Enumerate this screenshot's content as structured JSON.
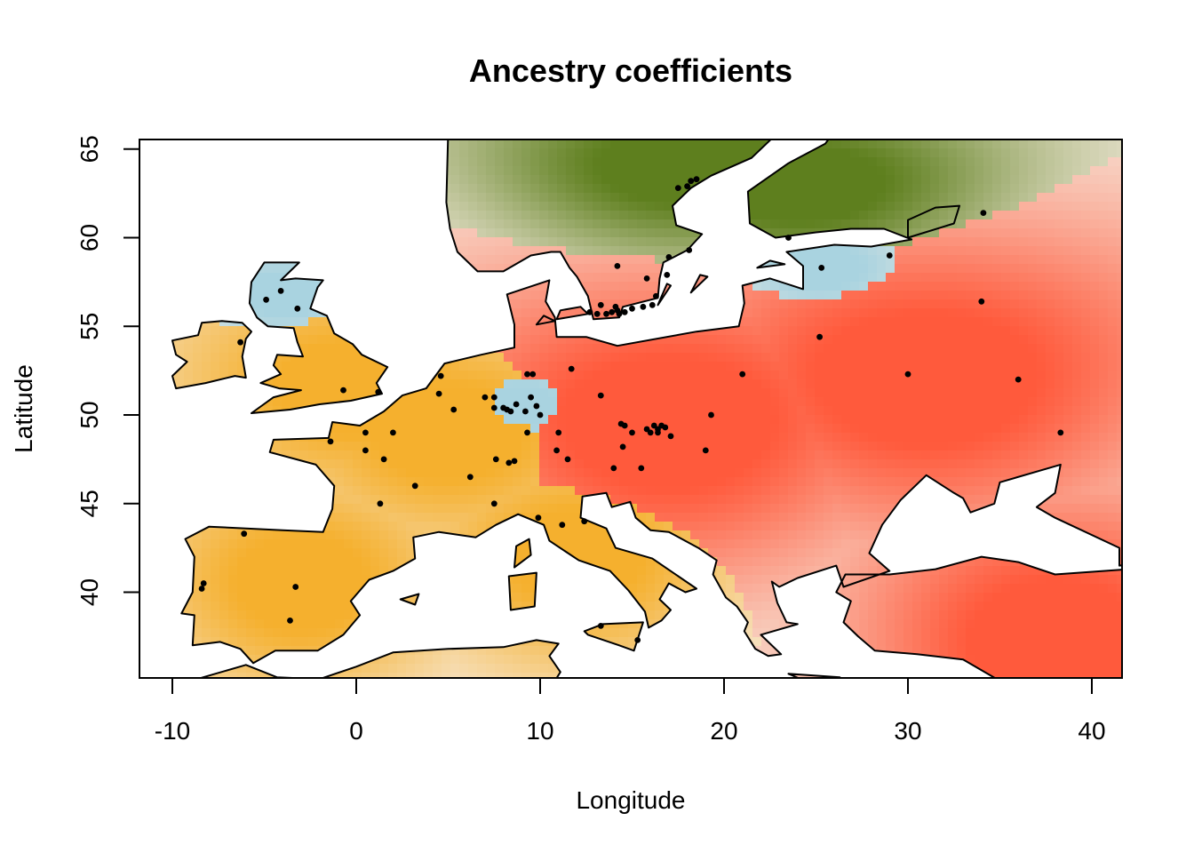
{
  "chart_data": {
    "type": "heatmap",
    "title": "Ancestry coefficients",
    "xlabel": "Longitude",
    "ylabel": "Latitude",
    "xlim": [
      -11.7,
      41.7
    ],
    "ylim": [
      35,
      65.5
    ],
    "xticks": [
      -10,
      0,
      10,
      20,
      30,
      40
    ],
    "yticks": [
      40,
      45,
      50,
      55,
      60,
      65
    ],
    "colors": {
      "orange_cluster": "#f5b02e",
      "red_cluster": "#ff5a3c",
      "blue_cluster": "#a9d3e0",
      "green_cluster": "#5e7f1e",
      "mixed": "#f6ece0",
      "sea": "#ffffff",
      "points": "#000000"
    },
    "clusters": [
      {
        "color": "orange",
        "centers": [
          [
            0,
            51.5
          ],
          [
            5,
            49
          ],
          [
            -3,
            40.5
          ],
          [
            12,
            42
          ]
        ]
      },
      {
        "color": "red",
        "centers": [
          [
            17,
            49.5
          ],
          [
            31,
            52
          ],
          [
            38,
            37
          ]
        ]
      },
      {
        "color": "blue",
        "centers": [
          [
            9,
            50.5
          ],
          [
            -4,
            56.8
          ],
          [
            25.3,
            58.3
          ]
        ]
      },
      {
        "color": "green",
        "centers": [
          [
            18,
            64
          ],
          [
            24,
            63
          ]
        ]
      }
    ],
    "points": [
      [
        -8.4,
        40.2
      ],
      [
        -8.3,
        40.5
      ],
      [
        -6.1,
        43.3
      ],
      [
        -3.3,
        40.3
      ],
      [
        -3.6,
        38.4
      ],
      [
        -6.3,
        54.1
      ],
      [
        -4.1,
        57.0
      ],
      [
        -4.9,
        56.5
      ],
      [
        -3.2,
        56.0
      ],
      [
        -0.7,
        51.4
      ],
      [
        1.2,
        51.3
      ],
      [
        -1.4,
        48.5
      ],
      [
        0.5,
        49.0
      ],
      [
        0.5,
        48.0
      ],
      [
        2.0,
        49.0
      ],
      [
        1.5,
        47.5
      ],
      [
        1.3,
        45.0
      ],
      [
        3.2,
        46.0
      ],
      [
        5.3,
        50.3
      ],
      [
        4.5,
        51.2
      ],
      [
        4.6,
        52.2
      ],
      [
        6.2,
        46.5
      ],
      [
        7.0,
        51.0
      ],
      [
        7.5,
        51.0
      ],
      [
        7.5,
        50.4
      ],
      [
        7.6,
        47.5
      ],
      [
        7.5,
        45.0
      ],
      [
        8.0,
        50.4
      ],
      [
        8.2,
        50.3
      ],
      [
        8.4,
        50.2
      ],
      [
        8.7,
        50.6
      ],
      [
        8.3,
        47.3
      ],
      [
        8.6,
        47.4
      ],
      [
        9.3,
        52.3
      ],
      [
        9.6,
        52.3
      ],
      [
        9.5,
        51.0
      ],
      [
        9.2,
        50.2
      ],
      [
        9.8,
        50.5
      ],
      [
        10.0,
        50.0
      ],
      [
        9.3,
        49.0
      ],
      [
        9.9,
        44.2
      ],
      [
        11.0,
        49.0
      ],
      [
        10.9,
        48.0
      ],
      [
        11.5,
        47.5
      ],
      [
        11.7,
        52.6
      ],
      [
        11.2,
        43.8
      ],
      [
        12.4,
        44.0
      ],
      [
        13.3,
        51.1
      ],
      [
        13.3,
        38.1
      ],
      [
        14.2,
        58.4
      ],
      [
        14.4,
        49.5
      ],
      [
        14.6,
        49.4
      ],
      [
        14.5,
        48.2
      ],
      [
        14.0,
        47.0
      ],
      [
        15.0,
        49.0
      ],
      [
        15.5,
        47.0
      ],
      [
        15.3,
        37.3
      ],
      [
        15.8,
        49.2
      ],
      [
        16.0,
        49.0
      ],
      [
        16.2,
        49.4
      ],
      [
        16.4,
        49.2
      ],
      [
        16.6,
        49.4
      ],
      [
        16.8,
        49.3
      ],
      [
        16.4,
        49.0
      ],
      [
        17.1,
        48.8
      ],
      [
        19.0,
        48.0
      ],
      [
        19.3,
        50.0
      ],
      [
        21.0,
        52.3
      ],
      [
        25.2,
        54.4
      ],
      [
        30.0,
        52.3
      ],
      [
        36.0,
        52.0
      ],
      [
        38.3,
        49.0
      ],
      [
        25.3,
        58.3
      ],
      [
        29.0,
        59.0
      ],
      [
        34.0,
        56.4
      ],
      [
        34.1,
        61.4
      ],
      [
        23.5,
        60.0
      ],
      [
        18.1,
        59.3
      ],
      [
        17.0,
        58.9
      ],
      [
        15.8,
        57.7
      ],
      [
        16.9,
        57.9
      ],
      [
        16.3,
        56.7
      ],
      [
        16.1,
        56.2
      ],
      [
        15.6,
        56.1
      ],
      [
        14.2,
        55.9
      ],
      [
        14.1,
        56.1
      ],
      [
        13.9,
        55.8
      ],
      [
        13.6,
        55.7
      ],
      [
        13.1,
        55.7
      ],
      [
        12.7,
        55.8
      ],
      [
        13.3,
        56.2
      ],
      [
        14.3,
        55.7
      ],
      [
        14.6,
        55.8
      ],
      [
        15.0,
        56.0
      ],
      [
        18.0,
        62.9
      ],
      [
        18.2,
        63.2
      ],
      [
        18.5,
        63.3
      ],
      [
        17.5,
        62.8
      ]
    ]
  }
}
